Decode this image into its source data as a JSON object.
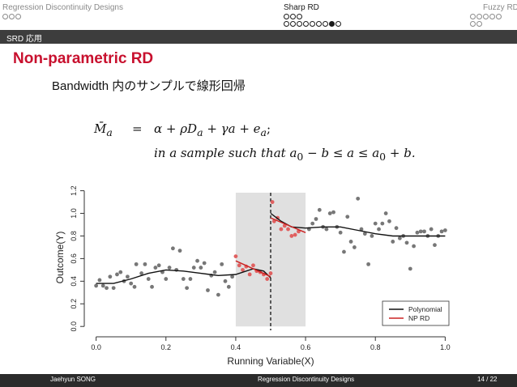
{
  "nav": {
    "sections": [
      {
        "label": "Regression Discontinuity Designs",
        "dots": [
          "o",
          "o",
          "o"
        ],
        "dots2": []
      },
      {
        "label": "Sharp RD",
        "dots": [
          "o",
          "o",
          "o"
        ],
        "dots2": [
          "o",
          "o",
          "o",
          "o",
          "o",
          "o",
          "o",
          "f",
          "o"
        ]
      },
      {
        "label": "Fuzzy RD",
        "dots": [
          "o",
          "o",
          "o",
          "o",
          "o"
        ],
        "dots2": [
          "o",
          "o"
        ]
      }
    ],
    "active_index": 1
  },
  "subsection": "SRD 応用",
  "slide": {
    "title": "Non-parametric RD",
    "bullet": "Bandwidth 内のサンプルで線形回帰"
  },
  "equation": {
    "lhs": "M̄",
    "lhs_sub": "a",
    "rel": "=",
    "rhs_alpha": "α + ρD",
    "rhs_sub1": "a",
    "rhs_mid": " + γa + e",
    "rhs_sub2": "a",
    "rhs_end": ";",
    "line2_a": "in a sample such that a",
    "line2_sub": "0",
    "line2_b": " − b ≤ a ≤ a",
    "line2_sub2": "0",
    "line2_c": " + b."
  },
  "chart_data": {
    "type": "scatter",
    "xlabel": "Running Variable(X)",
    "ylabel": "Outcome(Y)",
    "xlim": [
      -0.02,
      1.02
    ],
    "ylim": [
      -0.02,
      1.24
    ],
    "xticks": [
      "0.0",
      "0.2",
      "0.4",
      "0.6",
      "0.8",
      "1.0"
    ],
    "yticks": [
      "0.0",
      "0.2",
      "0.4",
      "0.6",
      "0.8",
      "1.0",
      "1.2"
    ],
    "cutoff": 0.5,
    "bandwidth": [
      0.4,
      0.6
    ],
    "colors": {
      "points": "#777777",
      "points_in_band": "#e06060",
      "polynomial": "#111111",
      "np_rd": "#cc2222",
      "band": "#e0e0e0"
    },
    "legend_position": "bottom-right",
    "legend": [
      {
        "name": "Polynomial",
        "color": "#111111"
      },
      {
        "name": "NP RD",
        "color": "#cc2222"
      }
    ],
    "points_outside": [
      [
        0.0,
        0.36
      ],
      [
        0.01,
        0.41
      ],
      [
        0.02,
        0.36
      ],
      [
        0.03,
        0.34
      ],
      [
        0.04,
        0.44
      ],
      [
        0.05,
        0.34
      ],
      [
        0.06,
        0.46
      ],
      [
        0.07,
        0.48
      ],
      [
        0.08,
        0.4
      ],
      [
        0.09,
        0.44
      ],
      [
        0.1,
        0.38
      ],
      [
        0.11,
        0.35
      ],
      [
        0.115,
        0.55
      ],
      [
        0.13,
        0.47
      ],
      [
        0.14,
        0.55
      ],
      [
        0.15,
        0.42
      ],
      [
        0.16,
        0.35
      ],
      [
        0.17,
        0.52
      ],
      [
        0.18,
        0.54
      ],
      [
        0.19,
        0.48
      ],
      [
        0.2,
        0.42
      ],
      [
        0.21,
        0.52
      ],
      [
        0.22,
        0.69
      ],
      [
        0.23,
        0.5
      ],
      [
        0.24,
        0.67
      ],
      [
        0.25,
        0.42
      ],
      [
        0.26,
        0.34
      ],
      [
        0.27,
        0.42
      ],
      [
        0.28,
        0.52
      ],
      [
        0.29,
        0.58
      ],
      [
        0.3,
        0.52
      ],
      [
        0.31,
        0.56
      ],
      [
        0.32,
        0.32
      ],
      [
        0.33,
        0.45
      ],
      [
        0.34,
        0.48
      ],
      [
        0.35,
        0.28
      ],
      [
        0.36,
        0.55
      ],
      [
        0.37,
        0.4
      ],
      [
        0.38,
        0.35
      ],
      [
        0.39,
        0.44
      ],
      [
        0.61,
        0.86
      ],
      [
        0.62,
        0.91
      ],
      [
        0.63,
        0.95
      ],
      [
        0.64,
        1.03
      ],
      [
        0.65,
        0.88
      ],
      [
        0.66,
        0.86
      ],
      [
        0.67,
        1.0
      ],
      [
        0.68,
        1.01
      ],
      [
        0.69,
        0.88
      ],
      [
        0.7,
        0.83
      ],
      [
        0.71,
        0.66
      ],
      [
        0.72,
        0.97
      ],
      [
        0.73,
        0.75
      ],
      [
        0.74,
        0.7
      ],
      [
        0.75,
        1.13
      ],
      [
        0.76,
        0.86
      ],
      [
        0.77,
        0.82
      ],
      [
        0.78,
        0.55
      ],
      [
        0.79,
        0.8
      ],
      [
        0.8,
        0.91
      ],
      [
        0.81,
        0.86
      ],
      [
        0.82,
        0.91
      ],
      [
        0.83,
        1.0
      ],
      [
        0.84,
        0.93
      ],
      [
        0.85,
        0.75
      ],
      [
        0.86,
        0.87
      ],
      [
        0.87,
        0.78
      ],
      [
        0.88,
        0.8
      ],
      [
        0.89,
        0.74
      ],
      [
        0.9,
        0.51
      ],
      [
        0.91,
        0.71
      ],
      [
        0.92,
        0.83
      ],
      [
        0.93,
        0.84
      ],
      [
        0.94,
        0.84
      ],
      [
        0.95,
        0.8
      ],
      [
        0.96,
        0.86
      ],
      [
        0.97,
        0.72
      ],
      [
        0.98,
        0.8
      ],
      [
        0.99,
        0.84
      ],
      [
        1.0,
        0.85
      ]
    ],
    "points_in_band": [
      [
        0.4,
        0.62
      ],
      [
        0.41,
        0.54
      ],
      [
        0.42,
        0.5
      ],
      [
        0.43,
        0.53
      ],
      [
        0.44,
        0.46
      ],
      [
        0.45,
        0.54
      ],
      [
        0.46,
        0.49
      ],
      [
        0.47,
        0.48
      ],
      [
        0.48,
        0.46
      ],
      [
        0.49,
        0.42
      ],
      [
        0.5,
        0.47
      ],
      [
        0.505,
        1.1
      ],
      [
        0.51,
        0.93
      ],
      [
        0.52,
        0.96
      ],
      [
        0.53,
        0.86
      ],
      [
        0.54,
        0.89
      ],
      [
        0.55,
        0.86
      ],
      [
        0.56,
        0.8
      ],
      [
        0.57,
        0.81
      ],
      [
        0.58,
        0.84
      ]
    ],
    "polynomial_left": [
      [
        0.0,
        0.38
      ],
      [
        0.05,
        0.38
      ],
      [
        0.1,
        0.42
      ],
      [
        0.15,
        0.47
      ],
      [
        0.2,
        0.5
      ],
      [
        0.25,
        0.49
      ],
      [
        0.3,
        0.47
      ],
      [
        0.35,
        0.45
      ],
      [
        0.4,
        0.46
      ],
      [
        0.45,
        0.51
      ],
      [
        0.48,
        0.49
      ],
      [
        0.5,
        0.43
      ]
    ],
    "polynomial_right": [
      [
        0.5,
        1.0
      ],
      [
        0.53,
        0.93
      ],
      [
        0.56,
        0.88
      ],
      [
        0.6,
        0.87
      ],
      [
        0.65,
        0.88
      ],
      [
        0.7,
        0.88
      ],
      [
        0.75,
        0.85
      ],
      [
        0.8,
        0.82
      ],
      [
        0.85,
        0.8
      ],
      [
        0.9,
        0.8
      ],
      [
        0.95,
        0.8
      ],
      [
        1.0,
        0.8
      ]
    ],
    "np_left": [
      [
        0.4,
        0.58
      ],
      [
        0.5,
        0.44
      ]
    ],
    "np_right": [
      [
        0.5,
        0.96
      ],
      [
        0.6,
        0.83
      ]
    ]
  },
  "footer": {
    "author": "Jaehyun SONG",
    "title": "Regression Discontinuity Designs",
    "page": "14 / 22"
  }
}
